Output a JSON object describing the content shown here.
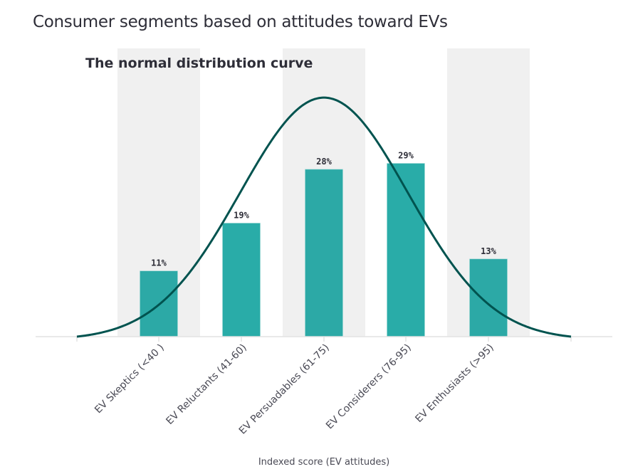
{
  "title": "Consumer segments based on attitudes toward EVs",
  "chart_data": {
    "type": "bar",
    "title": "Consumer segments based on attitudes toward EVs",
    "subtitle": "The normal distribution curve",
    "categories": [
      "EV Skeptics (<40 )",
      "EV Reluctants (41-60)",
      "EV Persuadables (61-75)",
      "EV Considerers (76-95)",
      "EV Enthusiasts (>95)"
    ],
    "values": [
      11,
      19,
      28,
      29,
      13
    ],
    "data_labels": [
      "11%",
      "19%",
      "28%",
      "29%",
      "13%"
    ],
    "unit": "%",
    "xlabel": "Indexed score (EV attitudes)",
    "ylabel": "",
    "ylim": [
      0,
      48
    ],
    "grid": false,
    "legend": "none",
    "overlay": {
      "type": "line",
      "name": "Normal distribution curve",
      "shape": "bell",
      "peak_value": 40,
      "peak_position": "center"
    },
    "shaded_bands": [
      "EV Skeptics (<40 )",
      "EV Persuadables (61-75)",
      "EV Enthusiasts (>95)"
    ],
    "colors": {
      "bar": "#2ca9a6",
      "bar_alt": "#29aca8",
      "curve": "#00534f",
      "band": "#f0f0f0",
      "axis": "#e2e2e2",
      "text": "#2e2e38"
    }
  }
}
